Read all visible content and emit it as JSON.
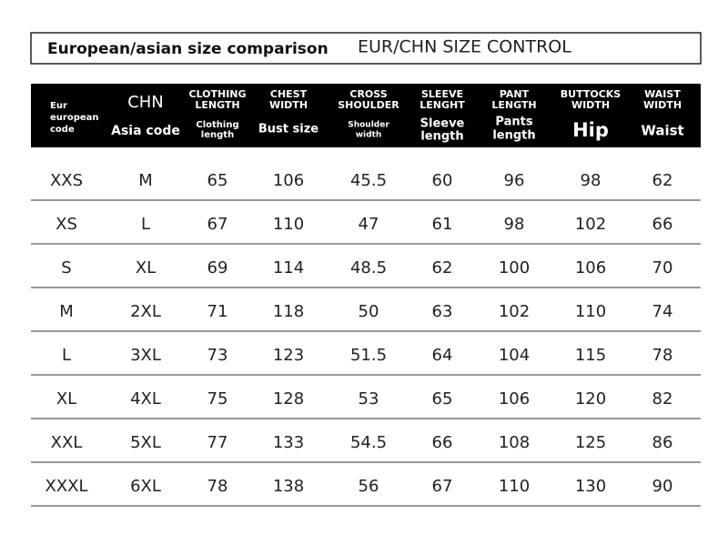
{
  "header": {
    "title": "European/asian size comparison",
    "subtitle": "EUR/CHN SIZE CONTROL"
  },
  "table": {
    "columns": [
      {
        "local": [
          "Eur",
          "european",
          "code"
        ]
      },
      {
        "en": [
          "CHN"
        ],
        "local": [
          "Asia code"
        ]
      },
      {
        "en": [
          "CLOTHING",
          "LENGTH"
        ],
        "local": [
          "Clothing",
          "length"
        ]
      },
      {
        "en": [
          "CHEST",
          "WIDTH"
        ],
        "local": [
          "Bust size"
        ]
      },
      {
        "en": [
          "CROSS",
          "SHOULDER"
        ],
        "local": [
          "Shoulder",
          "width"
        ]
      },
      {
        "en": [
          "SLEEVE",
          "LENGHT"
        ],
        "local": [
          "Sleeve",
          "length"
        ]
      },
      {
        "en": [
          "PANT",
          "LENGTH"
        ],
        "local": [
          "Pants",
          "length"
        ]
      },
      {
        "en": [
          "BUTTOCKS",
          "WIDTH"
        ],
        "local": [
          "Hip"
        ]
      },
      {
        "en": [
          "WAIST",
          "WIDTH"
        ],
        "local": [
          "Waist"
        ]
      }
    ],
    "rows": [
      [
        "XXS",
        "M",
        65,
        106,
        45.5,
        60,
        96,
        98,
        62
      ],
      [
        "XS",
        "L",
        67,
        110,
        47,
        61,
        98,
        102,
        66
      ],
      [
        "S",
        "XL",
        69,
        114,
        48.5,
        62,
        100,
        106,
        70
      ],
      [
        "M",
        "2XL",
        71,
        118,
        50,
        63,
        102,
        110,
        74
      ],
      [
        "L",
        "3XL",
        73,
        123,
        51.5,
        64,
        104,
        115,
        78
      ],
      [
        "XL",
        "4XL",
        75,
        128,
        53,
        65,
        106,
        120,
        82
      ],
      [
        "XXL",
        "5XL",
        77,
        133,
        54.5,
        66,
        108,
        125,
        86
      ],
      [
        "XXXL",
        "6XL",
        78,
        138,
        56,
        67,
        110,
        130,
        90
      ]
    ]
  }
}
